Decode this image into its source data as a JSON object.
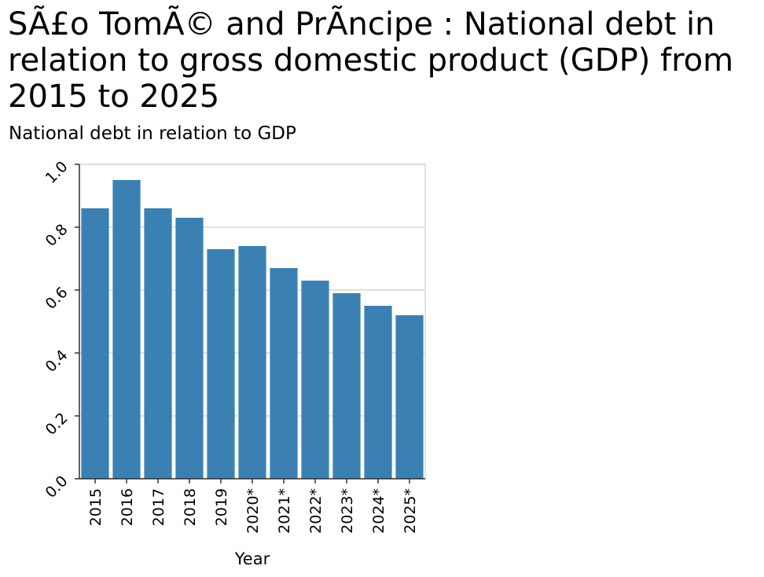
{
  "chart_data": {
    "type": "bar",
    "title": "SÃ£o TomÃ© and PrÃncipe : National debt in relation to gross domestic product (GDP) from 2015 to 2025",
    "ylabel": "National debt in relation to GDP",
    "xlabel": "Year",
    "categories": [
      "2015",
      "2016",
      "2017",
      "2018",
      "2019",
      "2020*",
      "2021*",
      "2022*",
      "2023*",
      "2024*",
      "2025*"
    ],
    "values": [
      0.86,
      0.95,
      0.86,
      0.83,
      0.73,
      0.74,
      0.67,
      0.63,
      0.59,
      0.55,
      0.52
    ],
    "ylim": [
      0,
      1.0
    ],
    "yticks": [
      "0.0",
      "0.2",
      "0.4",
      "0.6",
      "0.8",
      "1.0"
    ],
    "grid": true,
    "bar_color": "#3a80b3",
    "grid_color": "#d9d9d9"
  }
}
